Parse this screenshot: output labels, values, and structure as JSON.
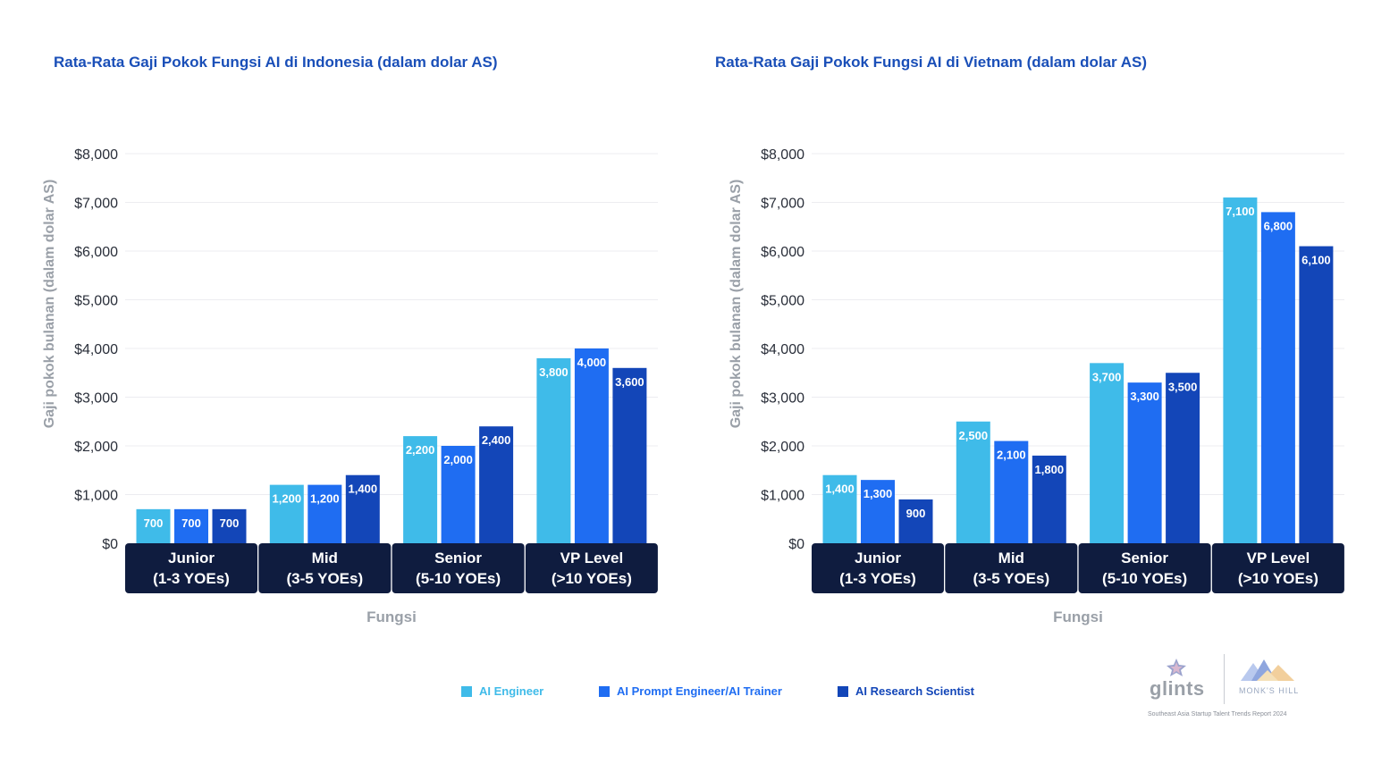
{
  "colors": {
    "title": "#1a4fb8",
    "series": [
      "#3fbbe9",
      "#1f6df2",
      "#1346b8"
    ],
    "category_band": "#0f1c3f",
    "axis_text": "#2a2f3a",
    "axis_label": "#9aa0a8",
    "grid": "#ececf0"
  },
  "legend": {
    "items": [
      {
        "label": "AI Engineer",
        "color": "#3fbbe9"
      },
      {
        "label": "AI Prompt Engineer/AI Trainer",
        "color": "#1f6df2"
      },
      {
        "label": "AI Research Scientist",
        "color": "#1346b8"
      }
    ]
  },
  "logos": {
    "glints": "glints",
    "monks_hill": "MONK'S HILL",
    "report": "Southeast Asia Startup Talent Trends Report 2024"
  },
  "chart_data": [
    {
      "type": "bar",
      "title": "Rata-Rata Gaji Pokok Fungsi AI di Indonesia (dalam dolar AS)",
      "xlabel": "Fungsi",
      "ylabel": "Gaji pokok bulanan (dalam dolar AS)",
      "ylim": [
        0,
        8000
      ],
      "yticks": [
        {
          "value": 0,
          "label": "$0"
        },
        {
          "value": 1000,
          "label": "$1,000"
        },
        {
          "value": 2000,
          "label": "$2,000"
        },
        {
          "value": 3000,
          "label": "$3,000"
        },
        {
          "value": 4000,
          "label": "$4,000"
        },
        {
          "value": 5000,
          "label": "$5,000"
        },
        {
          "value": 6000,
          "label": "$6,000"
        },
        {
          "value": 7000,
          "label": "$7,000"
        },
        {
          "value": 8000,
          "label": "$8,000"
        }
      ],
      "categories": [
        {
          "line1": "Junior",
          "line2": "(1-3 YOEs)"
        },
        {
          "line1": "Mid",
          "line2": "(3-5 YOEs)"
        },
        {
          "line1": "Senior",
          "line2": "(5-10 YOEs)"
        },
        {
          "line1": "VP Level",
          "line2": "(>10 YOEs)"
        }
      ],
      "series": [
        {
          "name": "AI Engineer",
          "values": [
            700,
            1200,
            2200,
            3800
          ],
          "labels": [
            "700",
            "1,200",
            "2,200",
            "3,800"
          ]
        },
        {
          "name": "AI Prompt Engineer/AI Trainer",
          "values": [
            700,
            1200,
            2000,
            4000
          ],
          "labels": [
            "700",
            "1,200",
            "2,000",
            "4,000"
          ]
        },
        {
          "name": "AI Research Scientist",
          "values": [
            700,
            1400,
            2400,
            3600
          ],
          "labels": [
            "700",
            "1,400",
            "2,400",
            "3,600"
          ]
        }
      ],
      "grid": true
    },
    {
      "type": "bar",
      "title": "Rata-Rata Gaji Pokok Fungsi AI di Vietnam  (dalam dolar AS)",
      "xlabel": "Fungsi",
      "ylabel": "Gaji pokok bulanan (dalam dolar AS)",
      "ylim": [
        0,
        8000
      ],
      "yticks": [
        {
          "value": 0,
          "label": "$0"
        },
        {
          "value": 1000,
          "label": "$1,000"
        },
        {
          "value": 2000,
          "label": "$2,000"
        },
        {
          "value": 3000,
          "label": "$3,000"
        },
        {
          "value": 4000,
          "label": "$4,000"
        },
        {
          "value": 5000,
          "label": "$5,000"
        },
        {
          "value": 6000,
          "label": "$6,000"
        },
        {
          "value": 7000,
          "label": "$7,000"
        },
        {
          "value": 8000,
          "label": "$8,000"
        }
      ],
      "categories": [
        {
          "line1": "Junior",
          "line2": "(1-3 YOEs)"
        },
        {
          "line1": "Mid",
          "line2": "(3-5 YOEs)"
        },
        {
          "line1": "Senior",
          "line2": "(5-10 YOEs)"
        },
        {
          "line1": "VP Level",
          "line2": "(>10 YOEs)"
        }
      ],
      "series": [
        {
          "name": "AI Engineer",
          "values": [
            1400,
            2500,
            3700,
            7100
          ],
          "labels": [
            "1,400",
            "2,500",
            "3,700",
            "7,100"
          ]
        },
        {
          "name": "AI Prompt Engineer/AI Trainer",
          "values": [
            1300,
            2100,
            3300,
            6800
          ],
          "labels": [
            "1,300",
            "2,100",
            "3,300",
            "6,800"
          ]
        },
        {
          "name": "AI Research Scientist",
          "values": [
            900,
            1800,
            3500,
            6100
          ],
          "labels": [
            "900",
            "1,800",
            "3,500",
            "6,100"
          ]
        }
      ],
      "grid": true
    }
  ]
}
